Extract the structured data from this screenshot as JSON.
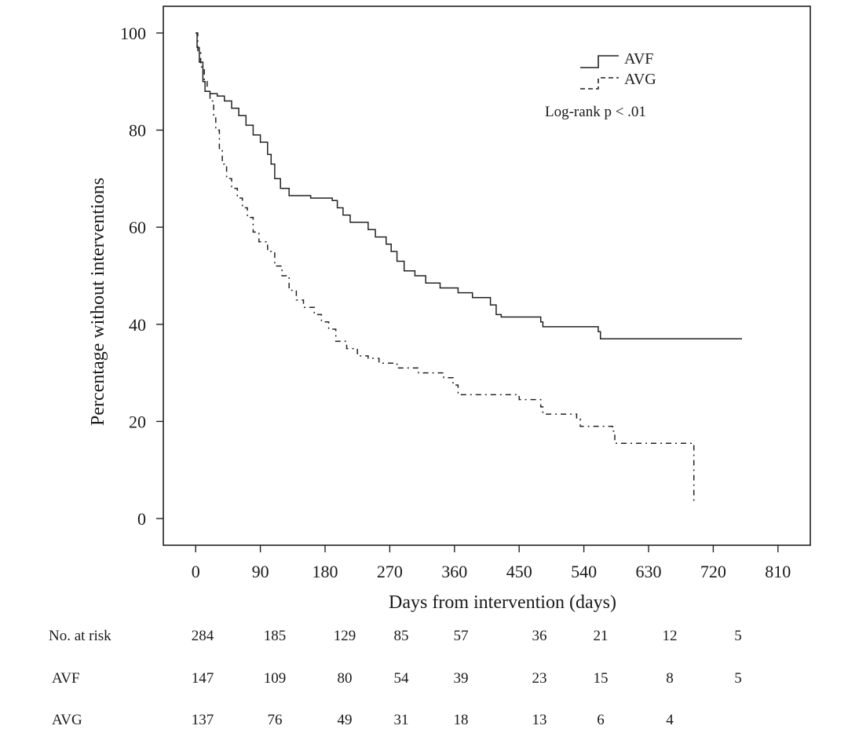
{
  "chart_data": {
    "type": "line",
    "title": "",
    "xlabel": "Days from intervention (days)",
    "ylabel": "Percentage without interventions",
    "xlim": [
      -45,
      855
    ],
    "ylim": [
      -5.5,
      105.5
    ],
    "x_ticks": [
      "0",
      "90",
      "180",
      "270",
      "360",
      "450",
      "540",
      "630",
      "720",
      "810"
    ],
    "y_ticks": [
      "0",
      "20",
      "40",
      "60",
      "80",
      "100"
    ],
    "x_tick_values": [
      0,
      90,
      180,
      270,
      360,
      450,
      540,
      630,
      720,
      810
    ],
    "y_tick_values": [
      0,
      20,
      40,
      60,
      80,
      100
    ],
    "legend": {
      "position": "top-right",
      "entries": [
        {
          "label": "AVF",
          "style": "solid"
        },
        {
          "label": "AVG",
          "style": "dashed"
        }
      ]
    },
    "annotation": "Log-rank p < .01",
    "series": [
      {
        "name": "AVF",
        "style": "solid",
        "points": [
          [
            0,
            100
          ],
          [
            2,
            97
          ],
          [
            5,
            94
          ],
          [
            10,
            90
          ],
          [
            13,
            88
          ],
          [
            20,
            87.5
          ],
          [
            30,
            87
          ],
          [
            40,
            86
          ],
          [
            50,
            84.5
          ],
          [
            60,
            83
          ],
          [
            70,
            81
          ],
          [
            80,
            79
          ],
          [
            90,
            77.5
          ],
          [
            100,
            75
          ],
          [
            105,
            73
          ],
          [
            110,
            70
          ],
          [
            118,
            68
          ],
          [
            130,
            66.5
          ],
          [
            160,
            66
          ],
          [
            190,
            65.5
          ],
          [
            197,
            64
          ],
          [
            205,
            62.5
          ],
          [
            215,
            61
          ],
          [
            240,
            59.5
          ],
          [
            250,
            58
          ],
          [
            265,
            56.5
          ],
          [
            272,
            55
          ],
          [
            280,
            53
          ],
          [
            290,
            51
          ],
          [
            305,
            50
          ],
          [
            320,
            48.5
          ],
          [
            340,
            47.5
          ],
          [
            365,
            46.5
          ],
          [
            385,
            45.5
          ],
          [
            410,
            44
          ],
          [
            418,
            42
          ],
          [
            425,
            41.5
          ],
          [
            480,
            40.5
          ],
          [
            483,
            39.5
          ],
          [
            560,
            38.5
          ],
          [
            563,
            37
          ],
          [
            760,
            37
          ]
        ]
      },
      {
        "name": "AVG",
        "style": "dashed",
        "points": [
          [
            0,
            100
          ],
          [
            3,
            96
          ],
          [
            7,
            93
          ],
          [
            12,
            90
          ],
          [
            16,
            88
          ],
          [
            20,
            86
          ],
          [
            25,
            83
          ],
          [
            28,
            80
          ],
          [
            33,
            76
          ],
          [
            37,
            73
          ],
          [
            43,
            70
          ],
          [
            50,
            68
          ],
          [
            58,
            66
          ],
          [
            65,
            64
          ],
          [
            72,
            62
          ],
          [
            80,
            59
          ],
          [
            88,
            57
          ],
          [
            100,
            55
          ],
          [
            110,
            52
          ],
          [
            120,
            50
          ],
          [
            130,
            47
          ],
          [
            140,
            45
          ],
          [
            150,
            43.5
          ],
          [
            165,
            42
          ],
          [
            175,
            40.5
          ],
          [
            185,
            39
          ],
          [
            195,
            36.5
          ],
          [
            210,
            35
          ],
          [
            225,
            33.5
          ],
          [
            240,
            33
          ],
          [
            255,
            32
          ],
          [
            280,
            31
          ],
          [
            310,
            30
          ],
          [
            345,
            29
          ],
          [
            358,
            27.5
          ],
          [
            365,
            25.5
          ],
          [
            440,
            25.5
          ],
          [
            450,
            24.5
          ],
          [
            480,
            23
          ],
          [
            483,
            21.5
          ],
          [
            530,
            20.5
          ],
          [
            535,
            19
          ],
          [
            580,
            18
          ],
          [
            583,
            15.5
          ],
          [
            690,
            15.5
          ],
          [
            693,
            3
          ]
        ]
      }
    ],
    "risk_table": {
      "header_label": "No. at risk",
      "rows": [
        {
          "label": "No. at risk",
          "values": [
            "284",
            "185",
            "129",
            "85",
            "57",
            "36",
            "21",
            "12",
            "5"
          ]
        },
        {
          "label": "AVF",
          "values": [
            "147",
            "109",
            "80",
            "54",
            "39",
            "23",
            "15",
            "8",
            "5"
          ]
        },
        {
          "label": "AVG",
          "values": [
            "137",
            "76",
            "49",
            "31",
            "18",
            "13",
            "6",
            "4"
          ]
        }
      ]
    }
  }
}
